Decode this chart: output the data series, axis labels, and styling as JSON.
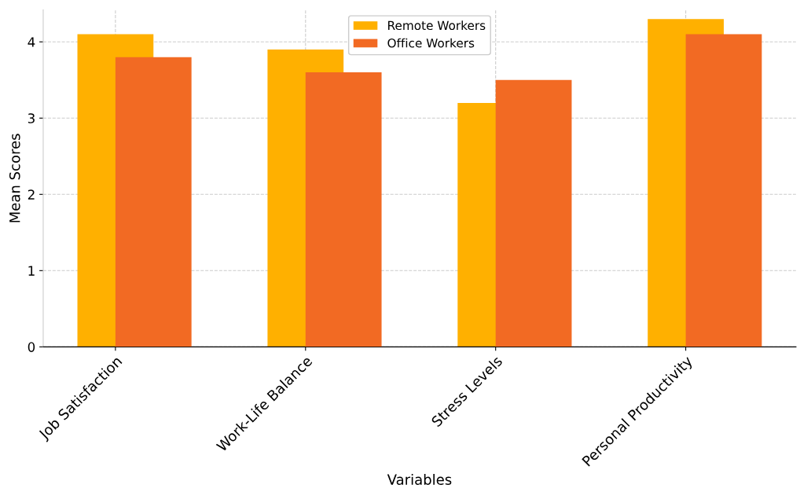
{
  "chart_data": {
    "type": "bar",
    "xlabel": "Variables",
    "ylabel": "Mean Scores",
    "categories": [
      "Job Satisfaction",
      "Work-Life Balance",
      "Stress Levels",
      "Personal Productivity"
    ],
    "series": [
      {
        "name": "Remote Workers",
        "color": "#ffb000",
        "values": [
          4.1,
          3.9,
          3.2,
          4.3
        ]
      },
      {
        "name": "Office Workers",
        "color": "#f26a23",
        "values": [
          3.8,
          3.6,
          3.5,
          4.1
        ]
      }
    ],
    "ylim": [
      0,
      4.42
    ],
    "yticks": [
      0,
      1,
      2,
      3,
      4
    ],
    "grid": true,
    "legend": "top"
  }
}
